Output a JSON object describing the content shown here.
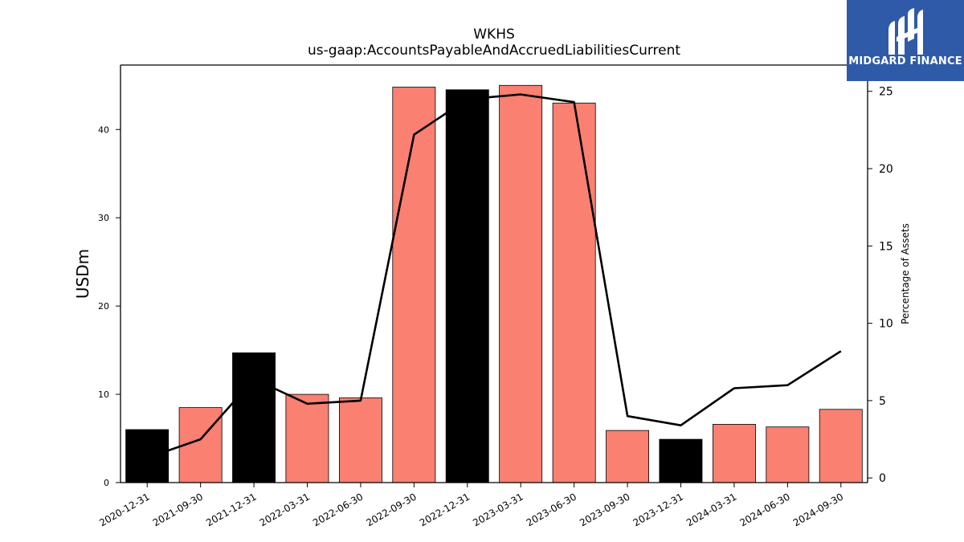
{
  "chart_data": {
    "type": "bar",
    "title": "WKHS",
    "subtitle": "us-gaap:AccountsPayableAndAccruedLiabilitiesCurrent",
    "ylabel": "USDm",
    "y2label": "Percentage of Assets",
    "categories": [
      "2020-12-31",
      "2021-09-30",
      "2021-12-31",
      "2022-03-31",
      "2022-06-30",
      "2022-09-30",
      "2022-12-31",
      "2023-03-31",
      "2023-06-30",
      "2023-09-30",
      "2023-12-31",
      "2024-03-31",
      "2024-06-30",
      "2024-09-30"
    ],
    "series": [
      {
        "type": "bar",
        "values": [
          6.0,
          8.5,
          14.7,
          10.0,
          9.6,
          44.8,
          44.5,
          45.0,
          43.0,
          5.9,
          4.9,
          6.6,
          6.3,
          8.3
        ],
        "colors": [
          "#000000",
          "#fa8072",
          "#000000",
          "#fa8072",
          "#fa8072",
          "#fa8072",
          "#000000",
          "#fa8072",
          "#fa8072",
          "#fa8072",
          "#000000",
          "#fa8072",
          "#fa8072",
          "#fa8072"
        ]
      },
      {
        "type": "line",
        "axis": "right",
        "values": [
          1.3,
          2.5,
          6.4,
          4.8,
          5.0,
          22.2,
          24.5,
          24.8,
          24.3,
          4.0,
          3.4,
          5.8,
          6.0,
          8.2
        ]
      }
    ],
    "ylim": [
      0,
      47.3
    ],
    "y2lim": [
      -0.3,
      26.7
    ],
    "yticks": [
      0,
      10,
      20,
      30,
      40
    ],
    "y2ticks": [
      0,
      5,
      10,
      15,
      20,
      25
    ],
    "grid": false
  },
  "logo": {
    "text": "MIDGARD FINANCE",
    "icon": "midgard-logo-icon",
    "color": "#2f5aa8"
  }
}
